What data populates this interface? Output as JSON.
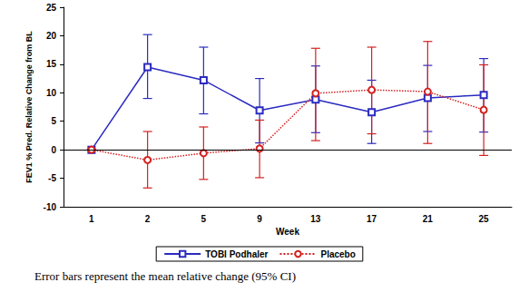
{
  "chart_data": {
    "type": "line",
    "x_label": "Week",
    "y_label": "FEV1 % Pred. Relative Change from BL",
    "categories": [
      "1",
      "2",
      "5",
      "9",
      "13",
      "17",
      "21",
      "25"
    ],
    "series": [
      {
        "name": "TOBI Podhaler",
        "color": "#2b2bc0",
        "marker": "square",
        "line_style": "solid",
        "values": [
          0,
          14.5,
          12.2,
          6.9,
          8.8,
          6.6,
          9.1,
          9.6
        ],
        "ci_lower": [
          0,
          9.0,
          6.3,
          1.2,
          3.0,
          1.1,
          3.2,
          3.1
        ],
        "ci_upper": [
          0,
          20.2,
          18.0,
          12.5,
          14.7,
          12.2,
          14.8,
          16.0
        ]
      },
      {
        "name": "Placebo",
        "color": "#d42020",
        "marker": "circle",
        "line_style": "dotted",
        "values": [
          0,
          -1.8,
          -0.6,
          0.2,
          9.9,
          10.5,
          10.2,
          7.0
        ],
        "ci_lower": [
          0,
          -6.7,
          -5.2,
          -4.9,
          1.6,
          2.8,
          1.1,
          -1.0
        ],
        "ci_upper": [
          0,
          3.2,
          4.0,
          5.2,
          17.8,
          18.0,
          19.0,
          14.9
        ]
      }
    ],
    "reference_line": 0,
    "ylim": [
      -10,
      25
    ],
    "yticks": [
      -10,
      -5,
      0,
      5,
      10,
      15,
      20,
      25
    ],
    "grid": false,
    "legend": "bottom",
    "caption": "Error bars represent the mean relative change (95% CI)"
  }
}
